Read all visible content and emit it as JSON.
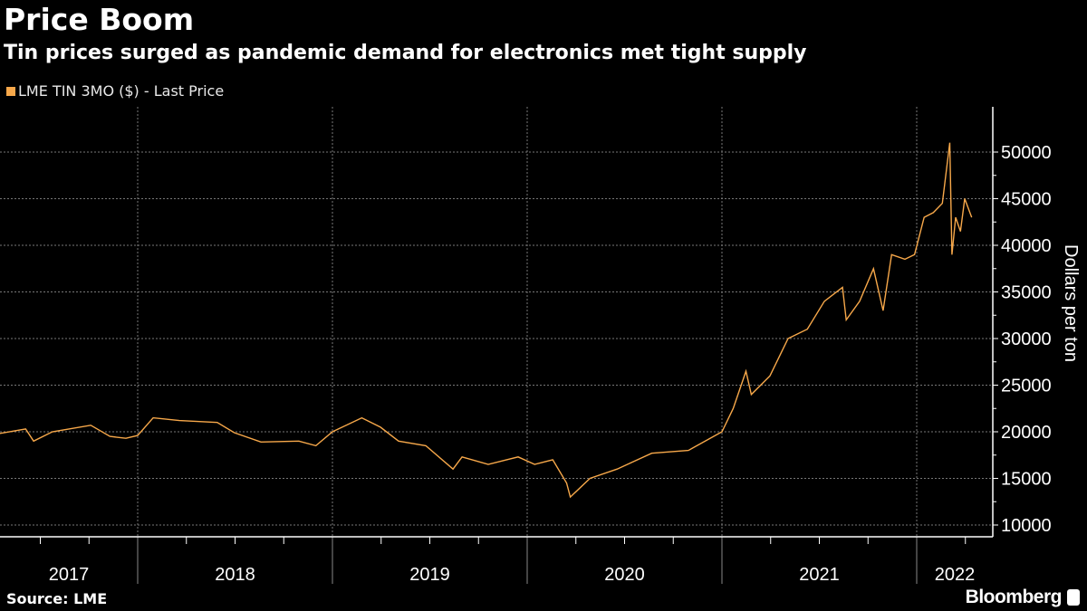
{
  "header": {
    "title": "Price Boom",
    "subtitle": "Tin prices surged as pandemic demand for electronics met tight supply"
  },
  "footer": {
    "source": "Source: LME",
    "brand": "Bloomberg"
  },
  "colors": {
    "series": "#f7a84a",
    "background": "#000000",
    "grid": "#777777"
  },
  "chart_data": {
    "type": "line",
    "title": "Price Boom",
    "ylabel": "Dollars per ton",
    "xlabel": "",
    "ylim": [
      10000,
      50000
    ],
    "yticks": [
      10000,
      15000,
      20000,
      25000,
      30000,
      35000,
      40000,
      45000,
      50000
    ],
    "xtick_labels": [
      "2017",
      "2018",
      "2019",
      "2020",
      "2021",
      "2022"
    ],
    "grid": true,
    "legend_position": "top-left",
    "series": [
      {
        "name": "LME TIN 3MO ($) - Last Price",
        "points": [
          [
            "2017-04-15",
            19800
          ],
          [
            "2017-06-05",
            20300
          ],
          [
            "2017-06-20",
            19000
          ],
          [
            "2017-07-25",
            20000
          ],
          [
            "2017-10-05",
            20700
          ],
          [
            "2017-11-10",
            19500
          ],
          [
            "2017-12-10",
            19300
          ],
          [
            "2018-01-01",
            19600
          ],
          [
            "2018-01-30",
            21500
          ],
          [
            "2018-03-20",
            21200
          ],
          [
            "2018-05-30",
            21000
          ],
          [
            "2018-07-01",
            19900
          ],
          [
            "2018-08-20",
            18900
          ],
          [
            "2018-10-30",
            19000
          ],
          [
            "2018-12-01",
            18500
          ],
          [
            "2019-01-01",
            20000
          ],
          [
            "2019-02-25",
            21500
          ],
          [
            "2019-04-01",
            20500
          ],
          [
            "2019-05-05",
            19000
          ],
          [
            "2019-06-25",
            18500
          ],
          [
            "2019-08-15",
            16000
          ],
          [
            "2019-09-01",
            17300
          ],
          [
            "2019-10-20",
            16500
          ],
          [
            "2019-12-15",
            17300
          ],
          [
            "2020-01-15",
            16500
          ],
          [
            "2020-02-18",
            17000
          ],
          [
            "2020-03-15",
            14500
          ],
          [
            "2020-03-22",
            13000
          ],
          [
            "2020-04-28",
            15000
          ],
          [
            "2020-06-18",
            16000
          ],
          [
            "2020-08-22",
            17700
          ],
          [
            "2020-10-30",
            18000
          ],
          [
            "2021-01-01",
            20000
          ],
          [
            "2021-01-22",
            22500
          ],
          [
            "2021-02-15",
            26500
          ],
          [
            "2021-02-25",
            24000
          ],
          [
            "2021-04-01",
            26000
          ],
          [
            "2021-05-05",
            30000
          ],
          [
            "2021-06-10",
            31000
          ],
          [
            "2021-07-12",
            34000
          ],
          [
            "2021-08-15",
            35500
          ],
          [
            "2021-08-22",
            32000
          ],
          [
            "2021-09-16",
            34000
          ],
          [
            "2021-10-12",
            37500
          ],
          [
            "2021-10-30",
            33000
          ],
          [
            "2021-11-15",
            39000
          ],
          [
            "2021-12-10",
            38500
          ],
          [
            "2021-12-28",
            39000
          ],
          [
            "2022-01-15",
            43000
          ],
          [
            "2022-02-01",
            43500
          ],
          [
            "2022-02-18",
            44500
          ],
          [
            "2022-03-04",
            51000
          ],
          [
            "2022-03-08",
            39000
          ],
          [
            "2022-03-15",
            43000
          ],
          [
            "2022-03-24",
            41500
          ],
          [
            "2022-04-01",
            45000
          ],
          [
            "2022-04-14",
            43000
          ]
        ]
      }
    ]
  }
}
